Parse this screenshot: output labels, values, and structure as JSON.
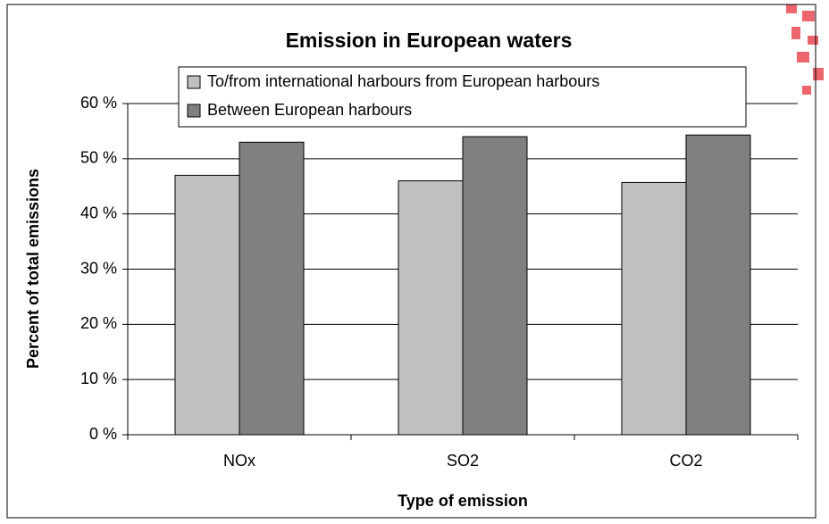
{
  "chart_data": {
    "type": "bar",
    "title": "Emission in European waters",
    "xlabel": "Type of emission",
    "ylabel": "Percent of total emissions",
    "categories": [
      "NOx",
      "SO2",
      "CO2"
    ],
    "series": [
      {
        "name": "To/from international harbours from European harbours",
        "color": "#c0c0c0",
        "values": [
          47,
          46,
          45.7
        ]
      },
      {
        "name": "Between European harbours",
        "color": "#808080",
        "values": [
          53,
          54,
          54.3
        ]
      }
    ],
    "ylim": [
      0,
      60
    ],
    "yticks": [
      {
        "value": 0,
        "label": "0 %"
      },
      {
        "value": 10,
        "label": "10 %"
      },
      {
        "value": 20,
        "label": "20 %"
      },
      {
        "value": 30,
        "label": "30 %"
      },
      {
        "value": 40,
        "label": "40 %"
      },
      {
        "value": 50,
        "label": "50 %"
      },
      {
        "value": 60,
        "label": "60 %"
      }
    ],
    "grid": true
  }
}
